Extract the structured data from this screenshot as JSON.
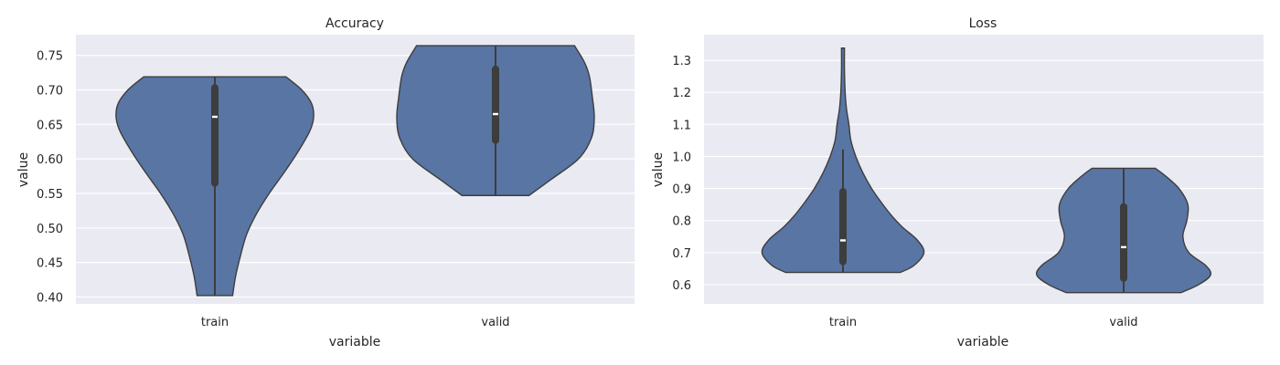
{
  "chart_data": [
    {
      "type": "violin",
      "title": "Accuracy",
      "xlabel": "variable",
      "ylabel": "value",
      "categories": [
        "train",
        "valid"
      ],
      "ylim": [
        0.39,
        0.78
      ],
      "yticks": [
        0.4,
        0.45,
        0.5,
        0.55,
        0.6,
        0.65,
        0.7,
        0.75
      ],
      "ytick_labels": [
        "0.40",
        "0.45",
        "0.50",
        "0.55",
        "0.60",
        "0.65",
        "0.70",
        "0.75"
      ],
      "grid": true,
      "color": "#5875a4",
      "violins": [
        {
          "category": "train",
          "min": 0.402,
          "max": 0.719,
          "q1": 0.565,
          "median": 0.661,
          "q3": 0.703,
          "whisker_low": 0.402,
          "whisker_high": 0.719,
          "density": [
            [
              0.402,
              0.18
            ],
            [
              0.43,
              0.21
            ],
            [
              0.46,
              0.26
            ],
            [
              0.49,
              0.32
            ],
            [
              0.52,
              0.42
            ],
            [
              0.55,
              0.55
            ],
            [
              0.58,
              0.7
            ],
            [
              0.61,
              0.84
            ],
            [
              0.64,
              0.96
            ],
            [
              0.66,
              1.0
            ],
            [
              0.68,
              0.98
            ],
            [
              0.7,
              0.88
            ],
            [
              0.719,
              0.72
            ]
          ]
        },
        {
          "category": "valid",
          "min": 0.547,
          "max": 0.764,
          "q1": 0.627,
          "median": 0.665,
          "q3": 0.73,
          "whisker_low": 0.547,
          "whisker_high": 0.764,
          "density": [
            [
              0.547,
              0.34
            ],
            [
              0.57,
              0.56
            ],
            [
              0.6,
              0.84
            ],
            [
              0.63,
              0.97
            ],
            [
              0.66,
              1.0
            ],
            [
              0.69,
              0.98
            ],
            [
              0.72,
              0.95
            ],
            [
              0.74,
              0.9
            ],
            [
              0.764,
              0.8
            ]
          ]
        }
      ]
    },
    {
      "type": "violin",
      "title": "Loss",
      "xlabel": "variable",
      "ylabel": "value",
      "categories": [
        "train",
        "valid"
      ],
      "ylim": [
        0.54,
        1.38
      ],
      "yticks": [
        0.6,
        0.7,
        0.8,
        0.9,
        1.0,
        1.1,
        1.2,
        1.3
      ],
      "ytick_labels": [
        "0.6",
        "0.7",
        "0.8",
        "0.9",
        "1.0",
        "1.1",
        "1.2",
        "1.3"
      ],
      "grid": true,
      "color": "#5875a4",
      "violins": [
        {
          "category": "train",
          "min": 0.638,
          "max": 1.338,
          "q1": 0.672,
          "median": 0.738,
          "q3": 0.89,
          "whisker_low": 0.638,
          "whisker_high": 1.022,
          "density": [
            [
              0.638,
              0.58
            ],
            [
              0.66,
              0.72
            ],
            [
              0.7,
              0.82
            ],
            [
              0.74,
              0.75
            ],
            [
              0.78,
              0.6
            ],
            [
              0.82,
              0.48
            ],
            [
              0.86,
              0.38
            ],
            [
              0.9,
              0.29
            ],
            [
              0.95,
              0.2
            ],
            [
              1.0,
              0.13
            ],
            [
              1.05,
              0.08
            ],
            [
              1.1,
              0.06
            ],
            [
              1.15,
              0.035
            ],
            [
              1.2,
              0.022
            ],
            [
              1.27,
              0.015
            ],
            [
              1.338,
              0.015
            ]
          ]
        },
        {
          "category": "valid",
          "min": 0.575,
          "max": 0.963,
          "q1": 0.62,
          "median": 0.717,
          "q3": 0.843,
          "whisker_low": 0.575,
          "whisker_high": 0.963,
          "density": [
            [
              0.575,
              0.58
            ],
            [
              0.6,
              0.76
            ],
            [
              0.63,
              0.88
            ],
            [
              0.66,
              0.83
            ],
            [
              0.7,
              0.66
            ],
            [
              0.75,
              0.6
            ],
            [
              0.8,
              0.64
            ],
            [
              0.85,
              0.65
            ],
            [
              0.9,
              0.56
            ],
            [
              0.94,
              0.42
            ],
            [
              0.963,
              0.32
            ]
          ]
        }
      ]
    }
  ]
}
